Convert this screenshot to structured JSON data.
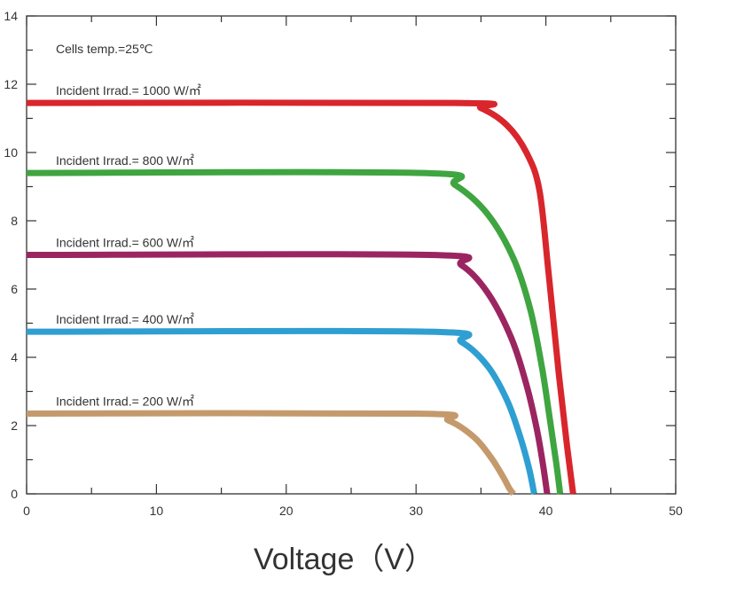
{
  "chart_data": {
    "type": "line",
    "title": "",
    "xlabel": "Voltage（V）",
    "ylabel": "",
    "xlim": [
      0,
      50
    ],
    "ylim": [
      0,
      14
    ],
    "x_ticks": [
      "0",
      "10",
      "20",
      "30",
      "40",
      "50"
    ],
    "y_ticks": [
      "0",
      "2",
      "4",
      "6",
      "8",
      "10",
      "12",
      "14"
    ],
    "grid": false,
    "legend": "none",
    "annotations": [
      "Cells temp.=25℃"
    ],
    "series": [
      {
        "name": "Incident Irrad.= 1000 W/㎡",
        "color": "#d8262c",
        "x": [
          0,
          33,
          35,
          37,
          38.5,
          39.5,
          40.2,
          41.0,
          41.6,
          42.1
        ],
        "y": [
          11.45,
          11.45,
          11.3,
          10.8,
          10.0,
          8.9,
          6.5,
          3.5,
          1.5,
          0
        ]
      },
      {
        "name": "Incident Irrad.= 800 W/㎡",
        "color": "#3fa540",
        "x": [
          0,
          30.5,
          33,
          35.5,
          37.5,
          38.8,
          39.7,
          40.3,
          40.8,
          41.1
        ],
        "y": [
          9.4,
          9.4,
          9.05,
          8.2,
          6.9,
          5.4,
          3.7,
          2.2,
          0.9,
          0
        ]
      },
      {
        "name": "Incident Irrad.= 600 W/㎡",
        "color": "#9b2560",
        "x": [
          0,
          31,
          33.5,
          35.5,
          37.3,
          38.5,
          39.3,
          39.8,
          40.1
        ],
        "y": [
          7.0,
          7.0,
          6.7,
          5.9,
          4.6,
          3.2,
          1.9,
          0.8,
          0
        ]
      },
      {
        "name": "Incident Irrad.= 400 W/㎡",
        "color": "#2f9fd2",
        "x": [
          0,
          31,
          33.5,
          35.5,
          37.0,
          38.0,
          38.7,
          39.1
        ],
        "y": [
          4.75,
          4.75,
          4.45,
          3.75,
          2.75,
          1.7,
          0.75,
          0
        ]
      },
      {
        "name": "Incident Irrad.= 200 W/㎡",
        "color": "#c49a6c",
        "x": [
          0,
          30,
          32.5,
          34.5,
          35.8,
          36.7,
          37.2,
          37.5
        ],
        "y": [
          2.35,
          2.35,
          2.15,
          1.65,
          1.05,
          0.5,
          0.15,
          0
        ]
      }
    ]
  }
}
